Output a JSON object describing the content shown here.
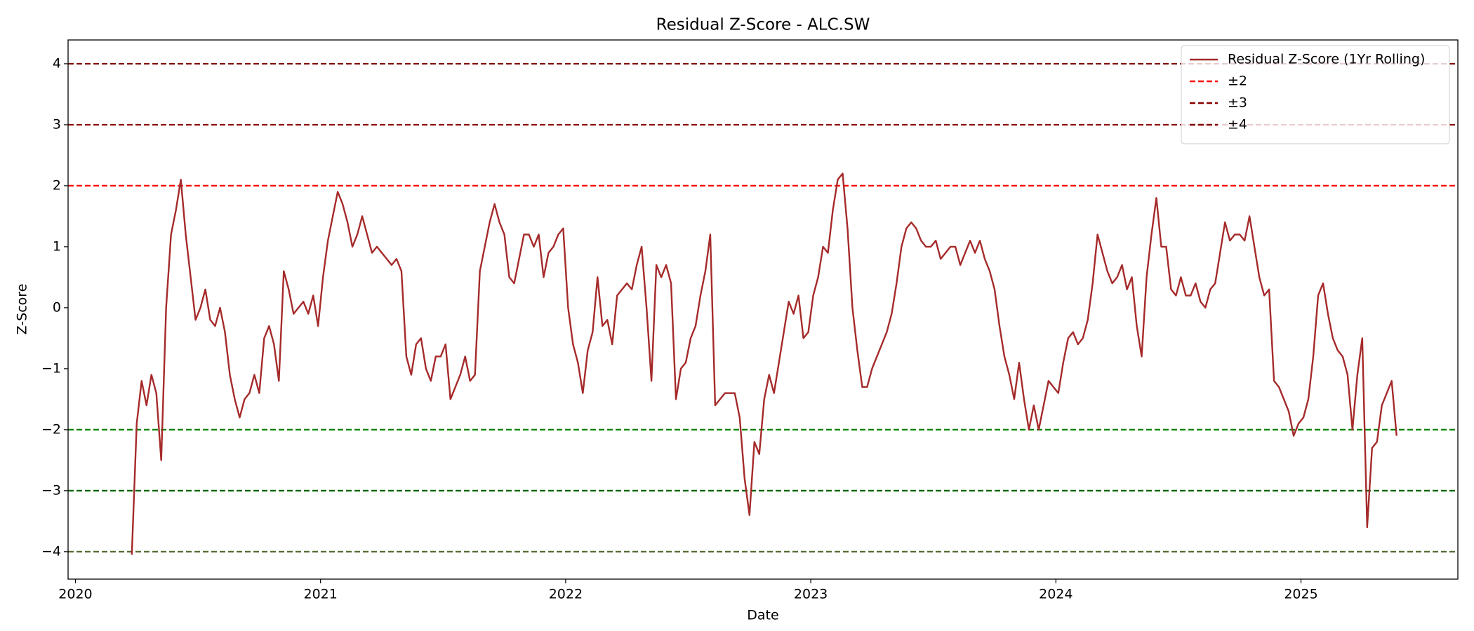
{
  "chart_data": {
    "type": "line",
    "title": "Residual Z-Score - ALC.SW",
    "x_label": "Date",
    "y_label": "Z-Score",
    "xlim": [
      2019.97,
      2025.64
    ],
    "ylim": [
      -4.45,
      4.39
    ],
    "xticks": [
      2020,
      2021,
      2022,
      2023,
      2024,
      2025
    ],
    "yticks": [
      {
        "value": -4,
        "label": "−4"
      },
      {
        "value": -3,
        "label": "−3"
      },
      {
        "value": -2,
        "label": "−2"
      },
      {
        "value": -1,
        "label": "−1"
      },
      0,
      1,
      2,
      3,
      4
    ],
    "legend_position": "upper right",
    "x": [
      2020.23,
      2020.25,
      2020.27,
      2020.29,
      2020.31,
      2020.33,
      2020.35,
      2020.37,
      2020.39,
      2020.41,
      2020.43,
      2020.45,
      2020.47,
      2020.49,
      2020.51,
      2020.53,
      2020.55,
      2020.57,
      2020.59,
      2020.61,
      2020.63,
      2020.65,
      2020.67,
      2020.69,
      2020.71,
      2020.73,
      2020.75,
      2020.77,
      2020.79,
      2020.81,
      2020.83,
      2020.85,
      2020.87,
      2020.89,
      2020.91,
      2020.93,
      2020.95,
      2020.97,
      2020.99,
      2021.01,
      2021.03,
      2021.05,
      2021.07,
      2021.09,
      2021.11,
      2021.13,
      2021.15,
      2021.17,
      2021.19,
      2021.21,
      2021.23,
      2021.25,
      2021.27,
      2021.29,
      2021.31,
      2021.33,
      2021.35,
      2021.37,
      2021.39,
      2021.41,
      2021.43,
      2021.45,
      2021.47,
      2021.49,
      2021.51,
      2021.53,
      2021.55,
      2021.57,
      2021.59,
      2021.61,
      2021.63,
      2021.65,
      2021.67,
      2021.69,
      2021.71,
      2021.73,
      2021.75,
      2021.77,
      2021.79,
      2021.81,
      2021.83,
      2021.85,
      2021.87,
      2021.89,
      2021.91,
      2021.93,
      2021.95,
      2021.97,
      2021.99,
      2022.01,
      2022.03,
      2022.05,
      2022.07,
      2022.09,
      2022.11,
      2022.13,
      2022.15,
      2022.17,
      2022.19,
      2022.21,
      2022.23,
      2022.25,
      2022.27,
      2022.29,
      2022.31,
      2022.33,
      2022.35,
      2022.37,
      2022.39,
      2022.41,
      2022.43,
      2022.45,
      2022.47,
      2022.49,
      2022.51,
      2022.53,
      2022.55,
      2022.57,
      2022.59,
      2022.61,
      2022.63,
      2022.65,
      2022.67,
      2022.69,
      2022.71,
      2022.73,
      2022.75,
      2022.77,
      2022.79,
      2022.81,
      2022.83,
      2022.85,
      2022.87,
      2022.89,
      2022.91,
      2022.93,
      2022.95,
      2022.97,
      2022.99,
      2023.01,
      2023.03,
      2023.05,
      2023.07,
      2023.09,
      2023.11,
      2023.13,
      2023.15,
      2023.17,
      2023.19,
      2023.21,
      2023.23,
      2023.25,
      2023.27,
      2023.29,
      2023.31,
      2023.33,
      2023.35,
      2023.37,
      2023.39,
      2023.41,
      2023.43,
      2023.45,
      2023.47,
      2023.49,
      2023.51,
      2023.53,
      2023.55,
      2023.57,
      2023.59,
      2023.61,
      2023.63,
      2023.65,
      2023.67,
      2023.69,
      2023.71,
      2023.73,
      2023.75,
      2023.77,
      2023.79,
      2023.81,
      2023.83,
      2023.85,
      2023.87,
      2023.89,
      2023.91,
      2023.93,
      2023.95,
      2023.97,
      2023.99,
      2024.01,
      2024.03,
      2024.05,
      2024.07,
      2024.09,
      2024.11,
      2024.13,
      2024.15,
      2024.17,
      2024.19,
      2024.21,
      2024.23,
      2024.25,
      2024.27,
      2024.29,
      2024.31,
      2024.33,
      2024.35,
      2024.37,
      2024.39,
      2024.41,
      2024.43,
      2024.45,
      2024.47,
      2024.49,
      2024.51,
      2024.53,
      2024.55,
      2024.57,
      2024.59,
      2024.61,
      2024.63,
      2024.65,
      2024.67,
      2024.69,
      2024.71,
      2024.73,
      2024.75,
      2024.77,
      2024.79,
      2024.81,
      2024.83,
      2024.85,
      2024.87,
      2024.89,
      2024.91,
      2024.93,
      2024.95,
      2024.97,
      2024.99,
      2025.01,
      2025.03,
      2025.05,
      2025.07,
      2025.09,
      2025.11,
      2025.13,
      2025.15,
      2025.17,
      2025.19,
      2025.21,
      2025.23,
      2025.25,
      2025.27,
      2025.29,
      2025.31,
      2025.33,
      2025.35,
      2025.37,
      2025.39
    ],
    "series": [
      {
        "name": "Residual Z-Score (1Yr Rolling)",
        "color": "#a52a2a",
        "values": [
          -4.05,
          -1.9,
          -1.2,
          -1.6,
          -1.1,
          -1.4,
          -2.5,
          0.0,
          1.2,
          1.6,
          2.1,
          1.2,
          0.5,
          -0.2,
          0.0,
          0.3,
          -0.2,
          -0.3,
          0.0,
          -0.4,
          -1.1,
          -1.5,
          -1.8,
          -1.5,
          -1.4,
          -1.1,
          -1.4,
          -0.5,
          -0.3,
          -0.6,
          -1.2,
          0.6,
          0.3,
          -0.1,
          0.0,
          0.1,
          -0.1,
          0.2,
          -0.3,
          0.5,
          1.1,
          1.5,
          1.9,
          1.7,
          1.4,
          1.0,
          1.2,
          1.5,
          1.2,
          0.9,
          1.0,
          0.9,
          0.8,
          0.7,
          0.8,
          0.6,
          -0.8,
          -1.1,
          -0.6,
          -0.5,
          -1.0,
          -1.2,
          -0.8,
          -0.8,
          -0.6,
          -1.5,
          -1.3,
          -1.1,
          -0.8,
          -1.2,
          -1.1,
          0.6,
          1.0,
          1.4,
          1.7,
          1.4,
          1.2,
          0.5,
          0.4,
          0.8,
          1.2,
          1.2,
          1.0,
          1.2,
          0.5,
          0.9,
          1.0,
          1.2,
          1.3,
          0.0,
          -0.6,
          -0.9,
          -1.4,
          -0.7,
          -0.4,
          0.5,
          -0.3,
          -0.2,
          -0.6,
          0.2,
          0.3,
          0.4,
          0.3,
          0.7,
          1.0,
          0.0,
          -1.2,
          0.7,
          0.5,
          0.7,
          0.4,
          -1.5,
          -1.0,
          -0.9,
          -0.5,
          -0.3,
          0.2,
          0.6,
          1.2,
          -1.6,
          -1.5,
          -1.4,
          -1.4,
          -1.4,
          -1.8,
          -2.8,
          -3.4,
          -2.2,
          -2.4,
          -1.5,
          -1.1,
          -1.4,
          -0.9,
          -0.4,
          0.1,
          -0.1,
          0.2,
          -0.5,
          -0.4,
          0.2,
          0.5,
          1.0,
          0.9,
          1.6,
          2.1,
          2.2,
          1.3,
          0.0,
          -0.7,
          -1.3,
          -1.3,
          -1.0,
          -0.8,
          -0.6,
          -0.4,
          -0.1,
          0.4,
          1.0,
          1.3,
          1.4,
          1.3,
          1.1,
          1.0,
          1.0,
          1.1,
          0.8,
          0.9,
          1.0,
          1.0,
          0.7,
          0.9,
          1.1,
          0.9,
          1.1,
          0.8,
          0.6,
          0.3,
          -0.3,
          -0.8,
          -1.1,
          -1.5,
          -0.9,
          -1.5,
          -2.0,
          -1.6,
          -2.0,
          -1.6,
          -1.2,
          -1.3,
          -1.4,
          -0.9,
          -0.5,
          -0.4,
          -0.6,
          -0.5,
          -0.2,
          0.4,
          1.2,
          0.9,
          0.6,
          0.4,
          0.5,
          0.7,
          0.3,
          0.5,
          -0.3,
          -0.8,
          0.5,
          1.2,
          1.8,
          1.0,
          1.0,
          0.3,
          0.2,
          0.5,
          0.2,
          0.2,
          0.4,
          0.1,
          0.0,
          0.3,
          0.4,
          0.9,
          1.4,
          1.1,
          1.2,
          1.2,
          1.1,
          1.5,
          1.0,
          0.5,
          0.2,
          0.3,
          -1.2,
          -1.3,
          -1.5,
          -1.7,
          -2.1,
          -1.9,
          -1.8,
          -1.5,
          -0.8,
          0.2,
          0.4,
          -0.1,
          -0.5,
          -0.7,
          -0.8,
          -1.1,
          -2.0,
          -1.1,
          -0.5,
          -3.6,
          -2.3,
          -2.2,
          -1.6,
          -1.4,
          -1.2,
          -2.1
        ]
      }
    ],
    "reference_lines": [
      {
        "name": "±2",
        "values": [
          2,
          -2
        ],
        "colors": [
          "#ff0000",
          "#008000"
        ]
      },
      {
        "name": "±3",
        "values": [
          3,
          -3
        ],
        "colors": [
          "#8b0000",
          "#006400"
        ]
      },
      {
        "name": "±4",
        "values": [
          4,
          -4
        ],
        "colors": [
          "#800000",
          "#556b2f"
        ]
      }
    ]
  }
}
